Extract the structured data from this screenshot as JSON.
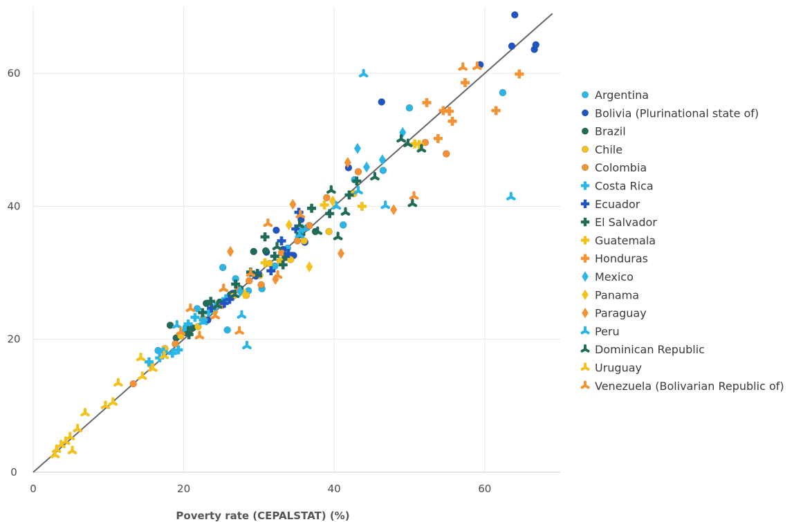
{
  "chart_data": {
    "type": "scatter",
    "title": "",
    "xlabel": "Poverty rate (CEPALSTAT) (%)",
    "ylabel": "",
    "xlim": [
      0,
      69
    ],
    "ylim": [
      0,
      70
    ],
    "xticks": [
      0,
      20,
      40,
      60
    ],
    "yticks": [
      0,
      20,
      40,
      60
    ],
    "grid": true,
    "legend_position": "right",
    "reference_line": {
      "from": [
        0,
        0
      ],
      "to": [
        69,
        69
      ],
      "color": "#666666"
    },
    "series": [
      {
        "name": "Argentina",
        "color": "#29b6e6",
        "marker": "circle",
        "x": [
          16.6,
          20.3,
          21.8,
          25.2,
          25.8,
          26.9,
          28.6,
          29.9,
          30.4,
          32.1,
          33.8,
          36.4,
          41.2,
          42.7,
          46.5,
          50.0,
          62.4
        ],
        "y": [
          18.3,
          21.8,
          24.6,
          30.8,
          21.4,
          29.1,
          27.3,
          29.8,
          27.6,
          31.0,
          33.7,
          36.8,
          37.2,
          44.0,
          45.4,
          54.8,
          57.1
        ]
      },
      {
        "name": "Bolivia (Plurinational state of)",
        "color": "#1f55c2",
        "marker": "circle",
        "x": [
          23.2,
          26.5,
          29.6,
          31.0,
          32.3,
          33.2,
          34.6,
          35.6,
          36.1,
          41.9,
          46.3,
          59.4,
          63.6,
          64.0,
          66.6,
          66.8
        ],
        "y": [
          22.9,
          26.9,
          29.5,
          33.1,
          36.4,
          33.5,
          32.6,
          38.0,
          34.6,
          45.8,
          55.7,
          61.3,
          64.1,
          68.8,
          63.6,
          64.3
        ]
      },
      {
        "name": "Brazil",
        "color": "#1f6b57",
        "marker": "circle",
        "x": [
          18.2,
          19.0,
          20.1,
          21.2,
          23.0,
          24.8,
          26.2,
          27.5,
          29.3,
          30.9,
          33.5,
          35.7,
          37.5
        ],
        "y": [
          22.1,
          20.2,
          21.1,
          21.7,
          25.4,
          25.6,
          26.7,
          27.6,
          33.2,
          33.3,
          32.3,
          35.8,
          36.2
        ]
      },
      {
        "name": "Chile",
        "color": "#f4c21f",
        "marker": "circle",
        "x": [
          15.6,
          17.5,
          19.6,
          21.9,
          24.1,
          26.6,
          28.3,
          30.1,
          31.4,
          32.8,
          34.2,
          36.0,
          39.3,
          42.6
        ],
        "y": [
          16.2,
          18.6,
          20.5,
          21.9,
          24.2,
          26.5,
          26.6,
          29.6,
          31.4,
          31.8,
          32.0,
          34.8,
          36.2,
          41.9
        ]
      },
      {
        "name": "Colombia",
        "color": "#f39232",
        "marker": "circle",
        "x": [
          13.3,
          18.9,
          22.6,
          25.1,
          27.3,
          28.7,
          30.3,
          33.0,
          35.1,
          36.7,
          39.0,
          43.2,
          52.1,
          54.9
        ],
        "y": [
          13.3,
          19.3,
          23.1,
          25.1,
          27.4,
          28.8,
          28.2,
          33.0,
          34.8,
          37.1,
          41.3,
          45.2,
          49.6,
          47.9
        ]
      },
      {
        "name": "Costa Rica",
        "color": "#29b6e6",
        "marker": "plus",
        "x": [
          15.4,
          16.8,
          17.3,
          18.5,
          19.3,
          20.1,
          20.6,
          21.5,
          22.6,
          23.3,
          24.2,
          25.6
        ],
        "y": [
          16.6,
          17.2,
          18.1,
          17.9,
          18.4,
          21.3,
          22.3,
          23.3,
          22.9,
          24.1,
          24.9,
          26.1
        ]
      },
      {
        "name": "Ecuador",
        "color": "#1f55c2",
        "marker": "plus",
        "x": [
          23.7,
          25.4,
          26.1,
          29.8,
          31.6,
          33.0,
          33.9,
          34.9,
          35.3
        ],
        "y": [
          24.7,
          25.4,
          26.0,
          29.9,
          30.3,
          34.8,
          32.9,
          36.6,
          39.1
        ]
      },
      {
        "name": "El Salvador",
        "color": "#1f6b57",
        "marker": "plus",
        "x": [
          20.7,
          22.5,
          23.6,
          26.9,
          28.9,
          30.8,
          32.1,
          33.2,
          35.5,
          37.0,
          39.4,
          42.0,
          43.0
        ],
        "y": [
          20.7,
          24.0,
          25.7,
          28.3,
          30.1,
          35.4,
          32.5,
          31.2,
          35.9,
          39.7,
          38.9,
          41.7,
          43.8
        ]
      },
      {
        "name": "Guatemala",
        "color": "#f4c21f",
        "marker": "plus",
        "x": [
          28.1,
          30.8,
          38.7,
          43.7,
          50.7,
          51.3
        ],
        "y": [
          26.8,
          31.5,
          40.2,
          40.0,
          49.4,
          49.3
        ]
      },
      {
        "name": "Honduras",
        "color": "#f39232",
        "marker": "plus",
        "x": [
          52.3,
          53.8,
          54.5,
          55.3,
          55.7,
          57.4,
          61.5,
          64.6
        ],
        "y": [
          55.6,
          50.2,
          54.4,
          54.3,
          52.8,
          58.6,
          54.4,
          59.9
        ]
      },
      {
        "name": "Mexico",
        "color": "#29b6e6",
        "marker": "diamond",
        "x": [
          27.5,
          35.8,
          43.1,
          44.3,
          46.4,
          49.1
        ],
        "y": [
          27.2,
          36.6,
          48.7,
          45.9,
          47.0,
          51.1
        ]
      },
      {
        "name": "Panama",
        "color": "#f4c21f",
        "marker": "diamond",
        "x": [
          34.0,
          36.7,
          39.8
        ],
        "y": [
          37.2,
          30.9,
          40.8
        ]
      },
      {
        "name": "Paraguay",
        "color": "#f39232",
        "marker": "diamond",
        "x": [
          26.2,
          32.2,
          34.5,
          40.9,
          41.8,
          47.9
        ],
        "y": [
          33.2,
          29.0,
          40.3,
          32.9,
          46.6,
          39.5
        ]
      },
      {
        "name": "Peru",
        "color": "#29b6e6",
        "marker": "tri",
        "x": [
          19.1,
          22.6,
          27.7,
          28.4,
          35.4,
          40.3,
          43.2,
          43.9,
          46.8,
          63.5
        ],
        "y": [
          22.1,
          22.6,
          23.6,
          19.0,
          35.7,
          40.0,
          42.3,
          59.9,
          40.1,
          41.4
        ]
      },
      {
        "name": "Dominican Republic",
        "color": "#1f6b57",
        "marker": "tri",
        "x": [
          20.6,
          24.5,
          26.8,
          29.8,
          32.4,
          35.4,
          37.8,
          39.6,
          40.5,
          41.5,
          45.4,
          48.9,
          49.8,
          50.4,
          51.6
        ],
        "y": [
          21.2,
          25.1,
          26.7,
          29.8,
          33.9,
          37.2,
          36.2,
          42.4,
          35.4,
          39.1,
          44.4,
          50.1,
          49.4,
          40.4,
          48.6
        ]
      },
      {
        "name": "Uruguay",
        "color": "#f4c21f",
        "marker": "tri",
        "x": [
          2.9,
          3.1,
          3.7,
          4.3,
          4.9,
          5.2,
          5.9,
          6.9,
          9.6,
          10.6,
          11.3,
          14.3,
          14.5,
          15.9,
          17.4
        ],
        "y": [
          2.6,
          3.4,
          4.1,
          4.6,
          5.3,
          3.2,
          6.5,
          8.9,
          10.0,
          10.5,
          13.4,
          17.2,
          14.4,
          15.6,
          17.5
        ]
      },
      {
        "name": "Venezuela (Bolivarian Republic of)",
        "color": "#f39232",
        "marker": "tri",
        "x": [
          19.6,
          20.9,
          22.1,
          24.2,
          25.3,
          27.4,
          28.9,
          31.2,
          32.5,
          35.5,
          50.6,
          57.1,
          59.0
        ],
        "y": [
          21.1,
          24.6,
          20.5,
          23.5,
          27.6,
          21.2,
          29.9,
          37.4,
          29.6,
          38.7,
          41.5,
          60.9,
          61.0
        ]
      }
    ]
  }
}
